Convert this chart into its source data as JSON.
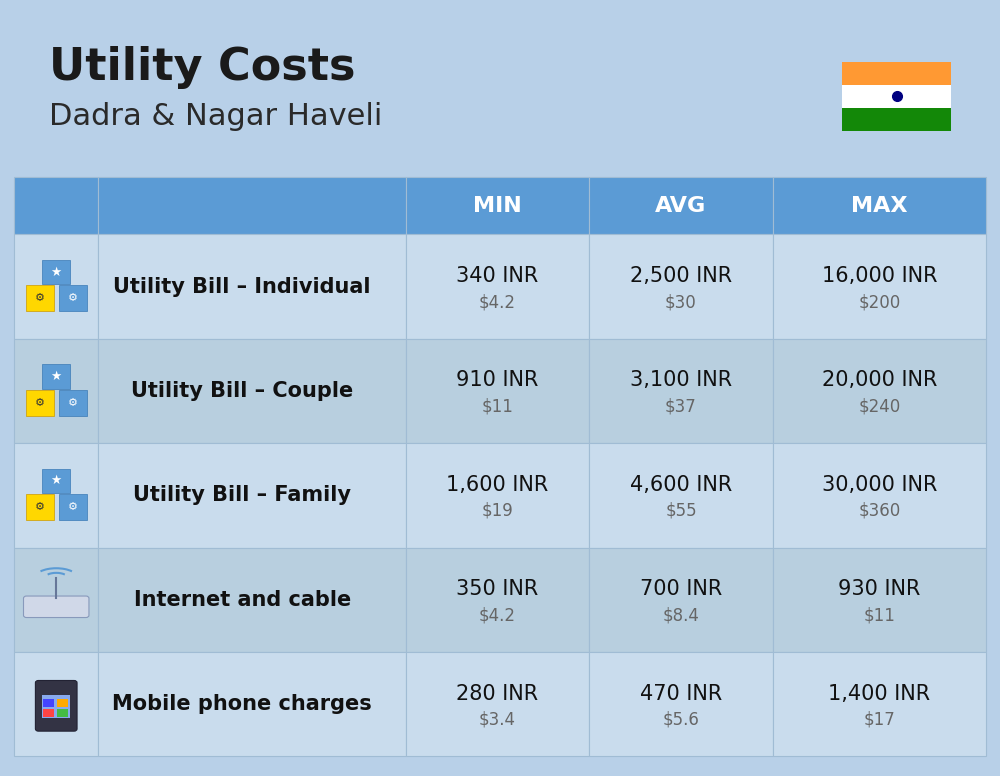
{
  "title": "Utility Costs",
  "subtitle": "Dadra & Nagar Haveli",
  "background_color": "#b8d0e8",
  "header_bg_color": "#5b9bd5",
  "header_text_color": "#ffffff",
  "row_bg_color_light": "#c9dced",
  "row_bg_color_dark": "#b8cfdf",
  "cell_border_color": "#a0bcd4",
  "col_headers": [
    "MIN",
    "AVG",
    "MAX"
  ],
  "rows": [
    {
      "label": "Utility Bill – Individual",
      "min_inr": "340 INR",
      "min_usd": "$4.2",
      "avg_inr": "2,500 INR",
      "avg_usd": "$30",
      "max_inr": "16,000 INR",
      "max_usd": "$200"
    },
    {
      "label": "Utility Bill – Couple",
      "min_inr": "910 INR",
      "min_usd": "$11",
      "avg_inr": "3,100 INR",
      "avg_usd": "$37",
      "max_inr": "20,000 INR",
      "max_usd": "$240"
    },
    {
      "label": "Utility Bill – Family",
      "min_inr": "1,600 INR",
      "min_usd": "$19",
      "avg_inr": "4,600 INR",
      "avg_usd": "$55",
      "max_inr": "30,000 INR",
      "max_usd": "$360"
    },
    {
      "label": "Internet and cable",
      "min_inr": "350 INR",
      "min_usd": "$4.2",
      "avg_inr": "700 INR",
      "avg_usd": "$8.4",
      "max_inr": "930 INR",
      "max_usd": "$11"
    },
    {
      "label": "Mobile phone charges",
      "min_inr": "280 INR",
      "min_usd": "$3.4",
      "avg_inr": "470 INR",
      "avg_usd": "$5.6",
      "max_inr": "1,400 INR",
      "max_usd": "$17"
    }
  ],
  "title_fontsize": 32,
  "subtitle_fontsize": 22,
  "header_fontsize": 16,
  "label_fontsize": 15,
  "value_fontsize": 15,
  "usd_fontsize": 12,
  "flag_orange": "#FF9933",
  "flag_white": "#FFFFFF",
  "flag_green": "#138808",
  "flag_chakra": "#000080"
}
